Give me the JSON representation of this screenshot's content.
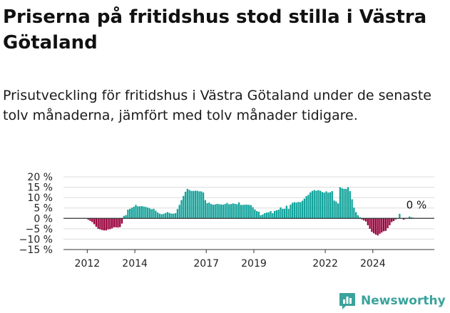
{
  "title": "Priserna på fritidshus stod stilla i Västra Götaland",
  "subtitle": "Prisutveckling för fritidshus i Västra Götaland under de senaste tolv månaderna, jämfört med tolv månader tidigare.",
  "brand": {
    "name": "Newsworthy",
    "icon": "bar-chart-logo-icon"
  },
  "colors": {
    "positive": "#12a39b",
    "negative": "#98003c",
    "grid": "#dcdcdc",
    "zero_line": "#333333",
    "brand": "#3aa39b"
  },
  "chart_data": {
    "type": "bar",
    "title": "",
    "xlabel": "",
    "ylabel": "",
    "ylim": [
      -15,
      20
    ],
    "y_ticks": [
      20,
      15,
      10,
      5,
      0,
      -5,
      -10,
      -15
    ],
    "y_tick_labels": [
      "20 %",
      "15 %",
      "10 %",
      "5 %",
      "0 %",
      "−5 %",
      "−10 %",
      "−15 %"
    ],
    "x_ticks": [
      2012,
      2014,
      2017,
      2019,
      2022,
      2024
    ],
    "grid": true,
    "start": "2011-01",
    "frequency": "monthly",
    "last_value_label": "0 %",
    "values": [
      0,
      0,
      0,
      0,
      0,
      0,
      0,
      0,
      0,
      0,
      0,
      0,
      -0.6,
      -1.2,
      -1.8,
      -2.8,
      -4,
      -5,
      -5.3,
      -5.6,
      -5.8,
      -5.8,
      -5.3,
      -5.2,
      -4.8,
      -4.3,
      -4.3,
      -4.4,
      -4.2,
      -2.5,
      1.2,
      1.6,
      4.2,
      4.6,
      5.1,
      5.6,
      6.5,
      5.8,
      5.8,
      5.9,
      5.7,
      5.5,
      5.2,
      4.8,
      4.4,
      4.6,
      3.7,
      2.8,
      2.3,
      2,
      2.2,
      2.6,
      3,
      2.6,
      2.3,
      2.3,
      2.5,
      4.5,
      6.5,
      8.8,
      10.8,
      12.8,
      14.2,
      13.7,
      13.2,
      13.2,
      13.3,
      13.3,
      13,
      13,
      12.5,
      8.8,
      7.3,
      7.6,
      6.9,
      6.6,
      6.7,
      7,
      6.8,
      6.7,
      6.6,
      6.9,
      7.4,
      6.8,
      6.9,
      7.2,
      7,
      6.8,
      7.7,
      6.5,
      6.5,
      6.6,
      6.6,
      6.5,
      6.4,
      5.4,
      4.3,
      3.5,
      3.2,
      1.5,
      1.9,
      2.5,
      2.8,
      2.9,
      3.5,
      2.5,
      3.6,
      3.9,
      4.2,
      5.3,
      4.6,
      4.6,
      6.1,
      4.6,
      6.6,
      7.5,
      7.8,
      7.6,
      7.9,
      7.8,
      8.5,
      9.5,
      10.7,
      11.3,
      12.5,
      13.2,
      13.6,
      13.3,
      13.6,
      13.3,
      12.7,
      12.4,
      13,
      12.4,
      12.6,
      13.1,
      8.6,
      8.1,
      7.2,
      15,
      14.5,
      14.2,
      14.2,
      15,
      13.1,
      9.2,
      5.2,
      3,
      1.5,
      0.5,
      -0.5,
      -1,
      -1.5,
      -3.3,
      -5,
      -6.5,
      -7.2,
      -7.8,
      -8.2,
      -7.4,
      -6.8,
      -6.2,
      -6,
      -4.7,
      -3.3,
      -1.8,
      -1.3,
      -0.5,
      0.2,
      2.2,
      0,
      -0.6,
      -0.3,
      0.2,
      0.9,
      0.5,
      0.3,
      0.1,
      0,
      0,
      0,
      0,
      0,
      0,
      0,
      0,
      0
    ]
  }
}
